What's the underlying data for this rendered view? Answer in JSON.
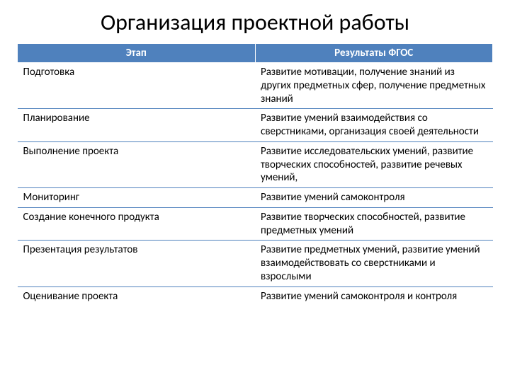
{
  "title": "Организация проектной работы",
  "table": {
    "header_bg": "#4f81bd",
    "header_color": "#ffffff",
    "border_color": "#4f81bd",
    "text_color": "#000000",
    "cell_fontsize": 15,
    "header_fontsize": 15,
    "columns": [
      "Этап",
      "Результаты ФГОС"
    ],
    "rows": [
      [
        "Подготовка",
        "Развитие мотивации, получение знаний из других предметных сфер, получение предметных знаний"
      ],
      [
        "Планирование",
        "Развитие умений взаимодействия со сверстниками, организация своей деятельности"
      ],
      [
        "Выполнение проекта",
        "Развитие исследовательских умений, развитие творческих способностей, развитие речевых умений,"
      ],
      [
        "Мониторинг",
        "Развитие умений самоконтроля"
      ],
      [
        "Создание конечного продукта",
        "Развитие творческих способностей, развитие предметных умений"
      ],
      [
        "Презентация результатов",
        "Развитие предметных умений, развитие умений взаимодействовать со сверстниками и взрослыми"
      ],
      [
        "Оценивание проекта",
        "Развитие умений самоконтроля и контроля"
      ]
    ]
  }
}
